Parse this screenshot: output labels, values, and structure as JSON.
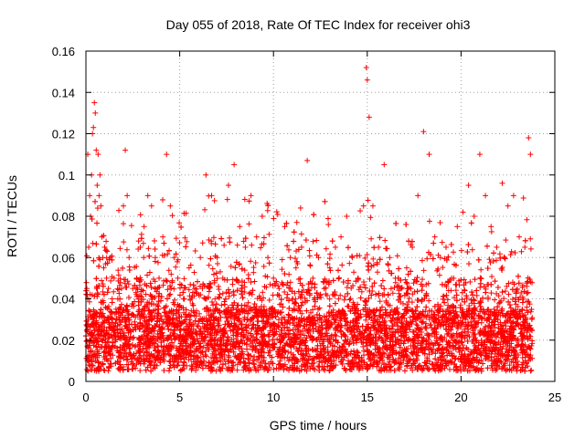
{
  "chart_data": {
    "type": "scatter",
    "title": "Day 055 of 2018, Rate Of TEC Index for receiver ohi3",
    "xlabel": "GPS time / hours",
    "ylabel": "ROTI / TECUs",
    "xlim": [
      0,
      25
    ],
    "ylim": [
      0,
      0.16
    ],
    "xticks": [
      0,
      5,
      10,
      15,
      20,
      25
    ],
    "xtick_labels": [
      "0",
      "5",
      "10",
      "15",
      "20",
      "25"
    ],
    "yticks": [
      0,
      0.02,
      0.04,
      0.06,
      0.08,
      0.1,
      0.12,
      0.14,
      0.16
    ],
    "ytick_labels": [
      "0",
      "0.02",
      "0.04",
      "0.06",
      "0.08",
      "0.1",
      "0.12",
      "0.14",
      "0.16"
    ],
    "grid": true,
    "marker": "plus",
    "color": "#ff0000",
    "series": [
      {
        "x": [
          0.05,
          0.1,
          0.15,
          0.2,
          0.25,
          0.3,
          0.35,
          0.4,
          0.45,
          0.5,
          0.55,
          0.6,
          0.65,
          0.7,
          0.75,
          0.8,
          0.85,
          0.9,
          0.95,
          1.0,
          1.1,
          1.2,
          1.3,
          1.4,
          1.5,
          1.6,
          1.7,
          1.8,
          1.9,
          2.0,
          2.1,
          2.2,
          2.3,
          2.5,
          2.7,
          2.9,
          3.1,
          3.3,
          3.5,
          3.7,
          3.9,
          4.1,
          4.3,
          4.5,
          4.7,
          4.9,
          5.2,
          5.5,
          5.8,
          6.1,
          6.4,
          6.7,
          7.0,
          7.3,
          7.6,
          7.9,
          8.2,
          8.5,
          8.8,
          9.1,
          9.4,
          9.7,
          10.0,
          10.3,
          10.6,
          10.9,
          11.2,
          11.5,
          11.8,
          12.1,
          12.4,
          12.7,
          13.0,
          13.3,
          13.6,
          13.9,
          14.2,
          14.5,
          14.8,
          14.95,
          15.0,
          15.1,
          15.3,
          15.6,
          15.9,
          16.2,
          16.5,
          16.8,
          17.1,
          17.4,
          17.7,
          18.0,
          18.3,
          18.6,
          18.9,
          19.2,
          19.5,
          19.8,
          20.1,
          20.4,
          20.7,
          21.0,
          21.3,
          21.6,
          21.9,
          22.2,
          22.5,
          22.8,
          23.1,
          23.4,
          23.6,
          23.7
        ],
        "y": [
          0.045,
          0.11,
          0.065,
          0.09,
          0.08,
          0.1,
          0.12,
          0.123,
          0.135,
          0.13,
          0.112,
          0.095,
          0.11,
          0.09,
          0.1,
          0.085,
          0.07,
          0.06,
          0.055,
          0.065,
          0.05,
          0.045,
          0.06,
          0.04,
          0.05,
          0.035,
          0.04,
          0.03,
          0.045,
          0.085,
          0.112,
          0.09,
          0.06,
          0.045,
          0.05,
          0.065,
          0.075,
          0.09,
          0.085,
          0.06,
          0.05,
          0.07,
          0.11,
          0.085,
          0.06,
          0.05,
          0.04,
          0.055,
          0.045,
          0.06,
          0.1,
          0.09,
          0.06,
          0.05,
          0.095,
          0.105,
          0.075,
          0.065,
          0.09,
          0.07,
          0.08,
          0.06,
          0.05,
          0.045,
          0.075,
          0.06,
          0.055,
          0.065,
          0.107,
          0.05,
          0.06,
          0.045,
          0.055,
          0.065,
          0.07,
          0.08,
          0.06,
          0.05,
          0.085,
          0.152,
          0.146,
          0.128,
          0.085,
          0.065,
          0.105,
          0.06,
          0.05,
          0.045,
          0.055,
          0.065,
          0.09,
          0.121,
          0.11,
          0.07,
          0.06,
          0.065,
          0.05,
          0.075,
          0.082,
          0.095,
          0.08,
          0.11,
          0.09,
          0.075,
          0.065,
          0.096,
          0.085,
          0.09,
          0.07,
          0.065,
          0.118,
          0.11
        ]
      }
    ]
  }
}
